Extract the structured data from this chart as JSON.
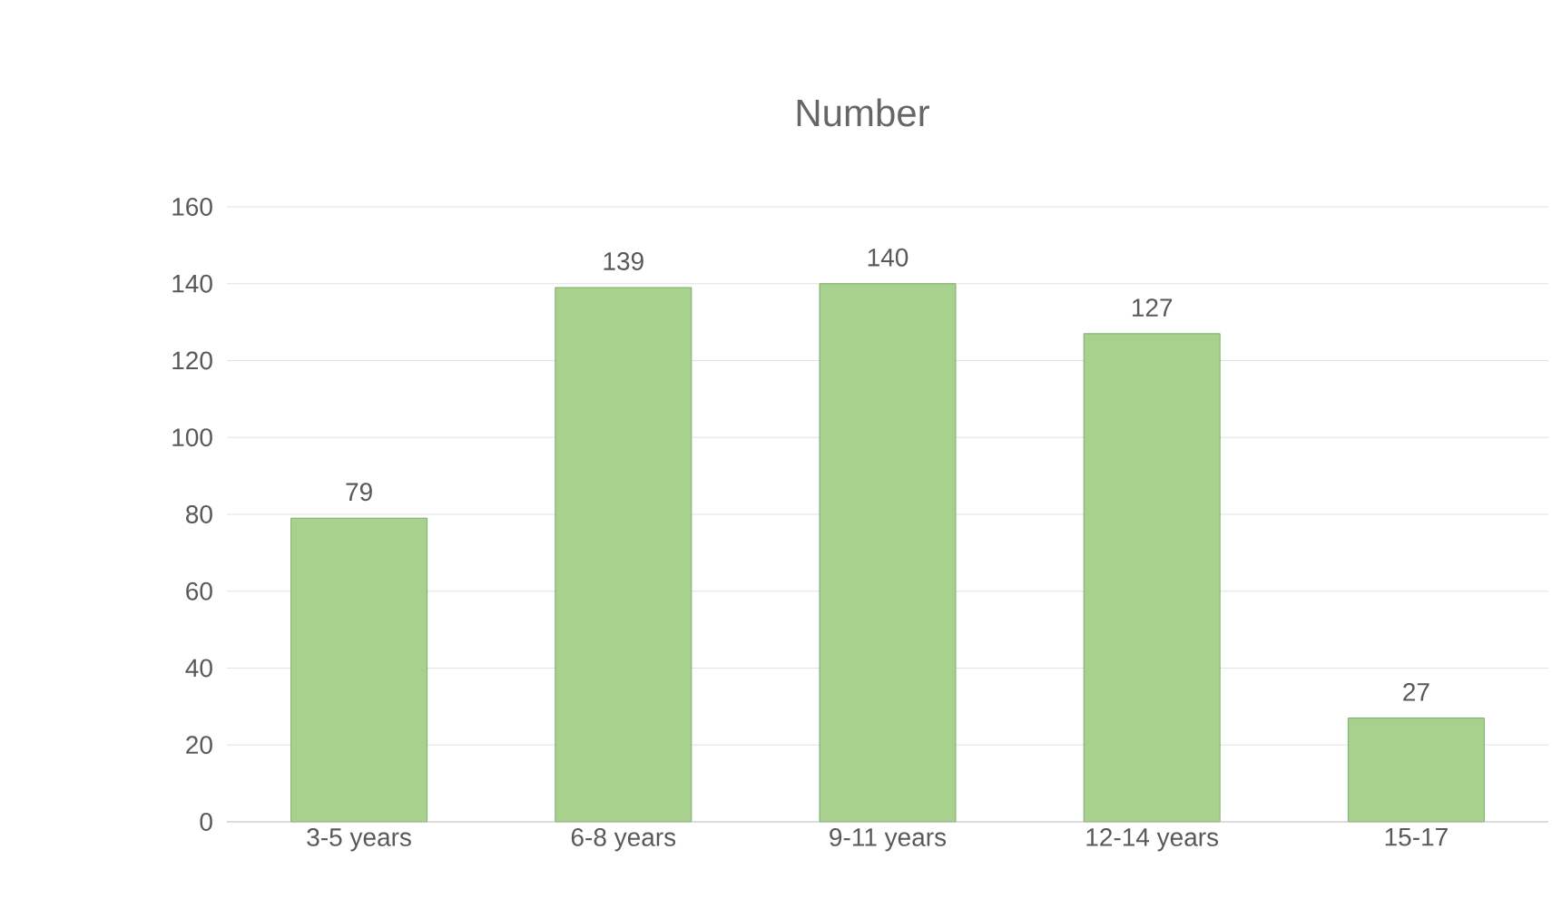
{
  "chart_data": {
    "type": "bar",
    "title": "Number",
    "categories": [
      "3-5 years",
      "6-8 years",
      "9-11 years",
      "12-14 years",
      "15-17"
    ],
    "values": [
      79,
      139,
      140,
      127,
      27
    ],
    "color": "#a9d18e",
    "ylim": [
      0,
      160
    ],
    "yticks": [
      0,
      20,
      40,
      60,
      80,
      100,
      120,
      140,
      160
    ],
    "grid": "y",
    "data_labels": true
  }
}
